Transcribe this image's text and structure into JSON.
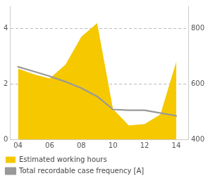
{
  "chart_data": {
    "type": "line",
    "x": [
      4,
      5,
      6,
      7,
      8,
      9,
      10,
      11,
      12,
      13,
      14
    ],
    "series": [
      {
        "name": "Estimated working hours",
        "type": "area",
        "color": "#F5C800",
        "axis": "y2",
        "values": [
          655,
          635,
          620,
          670,
          770,
          820,
          510,
          450,
          455,
          490,
          680
        ]
      },
      {
        "name": "Total recordable case frequency [A]",
        "type": "line",
        "color": "#999999",
        "values": [
          2.62,
          2.45,
          2.28,
          2.08,
          1.85,
          1.55,
          1.08,
          1.05,
          1.05,
          0.95,
          0.85
        ]
      }
    ],
    "xlim": [
      3.5,
      14.8
    ],
    "xticks": [
      {
        "value": 4,
        "label": "04"
      },
      {
        "value": 6,
        "label": "06"
      },
      {
        "value": 8,
        "label": "08"
      },
      {
        "value": 10,
        "label": "10"
      },
      {
        "value": 12,
        "label": "12"
      },
      {
        "value": 14,
        "label": "14"
      }
    ],
    "ylim": [
      0,
      4.8
    ],
    "yticks": [
      0,
      2,
      4
    ],
    "y2lim": [
      400,
      880
    ],
    "y2ticks": [
      400,
      600,
      800
    ],
    "grid": "y",
    "legend": "bottom"
  }
}
